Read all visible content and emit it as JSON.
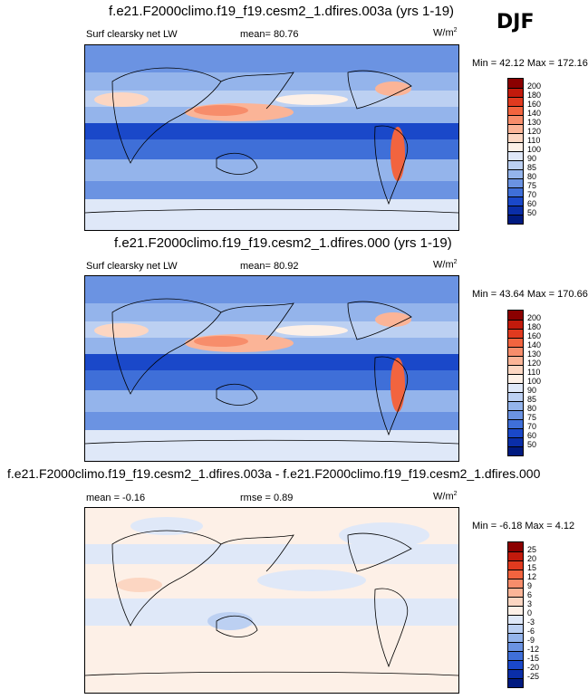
{
  "season": "DJF",
  "panels": [
    {
      "title": "f.e21.F2000climo.f19_f19.cesm2_1.dfires.003a (yrs 1-19)",
      "left_label": "Surf clearsky net LW",
      "mean_label": "mean=  80.76",
      "units_text": "W/m",
      "units_exp": "2",
      "minmax": "Min =  42.12 Max = 172.16",
      "colorbar_labels": [
        "200",
        "180",
        "160",
        "140",
        "130",
        "120",
        "110",
        "100",
        "90",
        "85",
        "80",
        "75",
        "70",
        "60",
        "50"
      ],
      "colors": [
        "#8b0000",
        "#c21a0c",
        "#e03a1f",
        "#f2643f",
        "#f78d6b",
        "#fbb497",
        "#fcd6c2",
        "#fdf0e7",
        "#dfe8f8",
        "#bcd0f2",
        "#94b4eb",
        "#6b93e2",
        "#3f6fd8",
        "#1a48c9",
        "#0a2ea8",
        "#001a80"
      ]
    },
    {
      "title": "f.e21.F2000climo.f19_f19.cesm2_1.dfires.000 (yrs 1-19)",
      "left_label": "Surf clearsky net LW",
      "mean_label": "mean=  80.92",
      "units_text": "W/m",
      "units_exp": "2",
      "minmax": "Min =  43.64 Max = 170.66",
      "colorbar_labels": [
        "200",
        "180",
        "160",
        "140",
        "130",
        "120",
        "110",
        "100",
        "90",
        "85",
        "80",
        "75",
        "70",
        "60",
        "50"
      ],
      "colors": [
        "#8b0000",
        "#c21a0c",
        "#e03a1f",
        "#f2643f",
        "#f78d6b",
        "#fbb497",
        "#fcd6c2",
        "#fdf0e7",
        "#dfe8f8",
        "#bcd0f2",
        "#94b4eb",
        "#6b93e2",
        "#3f6fd8",
        "#1a48c9",
        "#0a2ea8",
        "#001a80"
      ]
    },
    {
      "title": "f.e21.F2000climo.f19_f19.cesm2_1.dfires.003a - f.e21.F2000climo.f19_f19.cesm2_1.dfires.000",
      "left_label": "mean =  -0.16",
      "mean_label": "rmse =   0.89",
      "units_text": "W/m",
      "units_exp": "2",
      "minmax": "Min =  -6.18 Max =  4.12",
      "colorbar_labels": [
        "25",
        "20",
        "15",
        "12",
        "9",
        "6",
        "3",
        "0",
        "-3",
        "-6",
        "-9",
        "-12",
        "-15",
        "-20",
        "-25"
      ],
      "colors": [
        "#8b0000",
        "#c21a0c",
        "#e03a1f",
        "#f2643f",
        "#f78d6b",
        "#fbb497",
        "#fcd6c2",
        "#fdf0e7",
        "#dfe8f8",
        "#bcd0f2",
        "#94b4eb",
        "#6b93e2",
        "#3f6fd8",
        "#1a48c9",
        "#0a2ea8",
        "#001a80"
      ]
    }
  ]
}
